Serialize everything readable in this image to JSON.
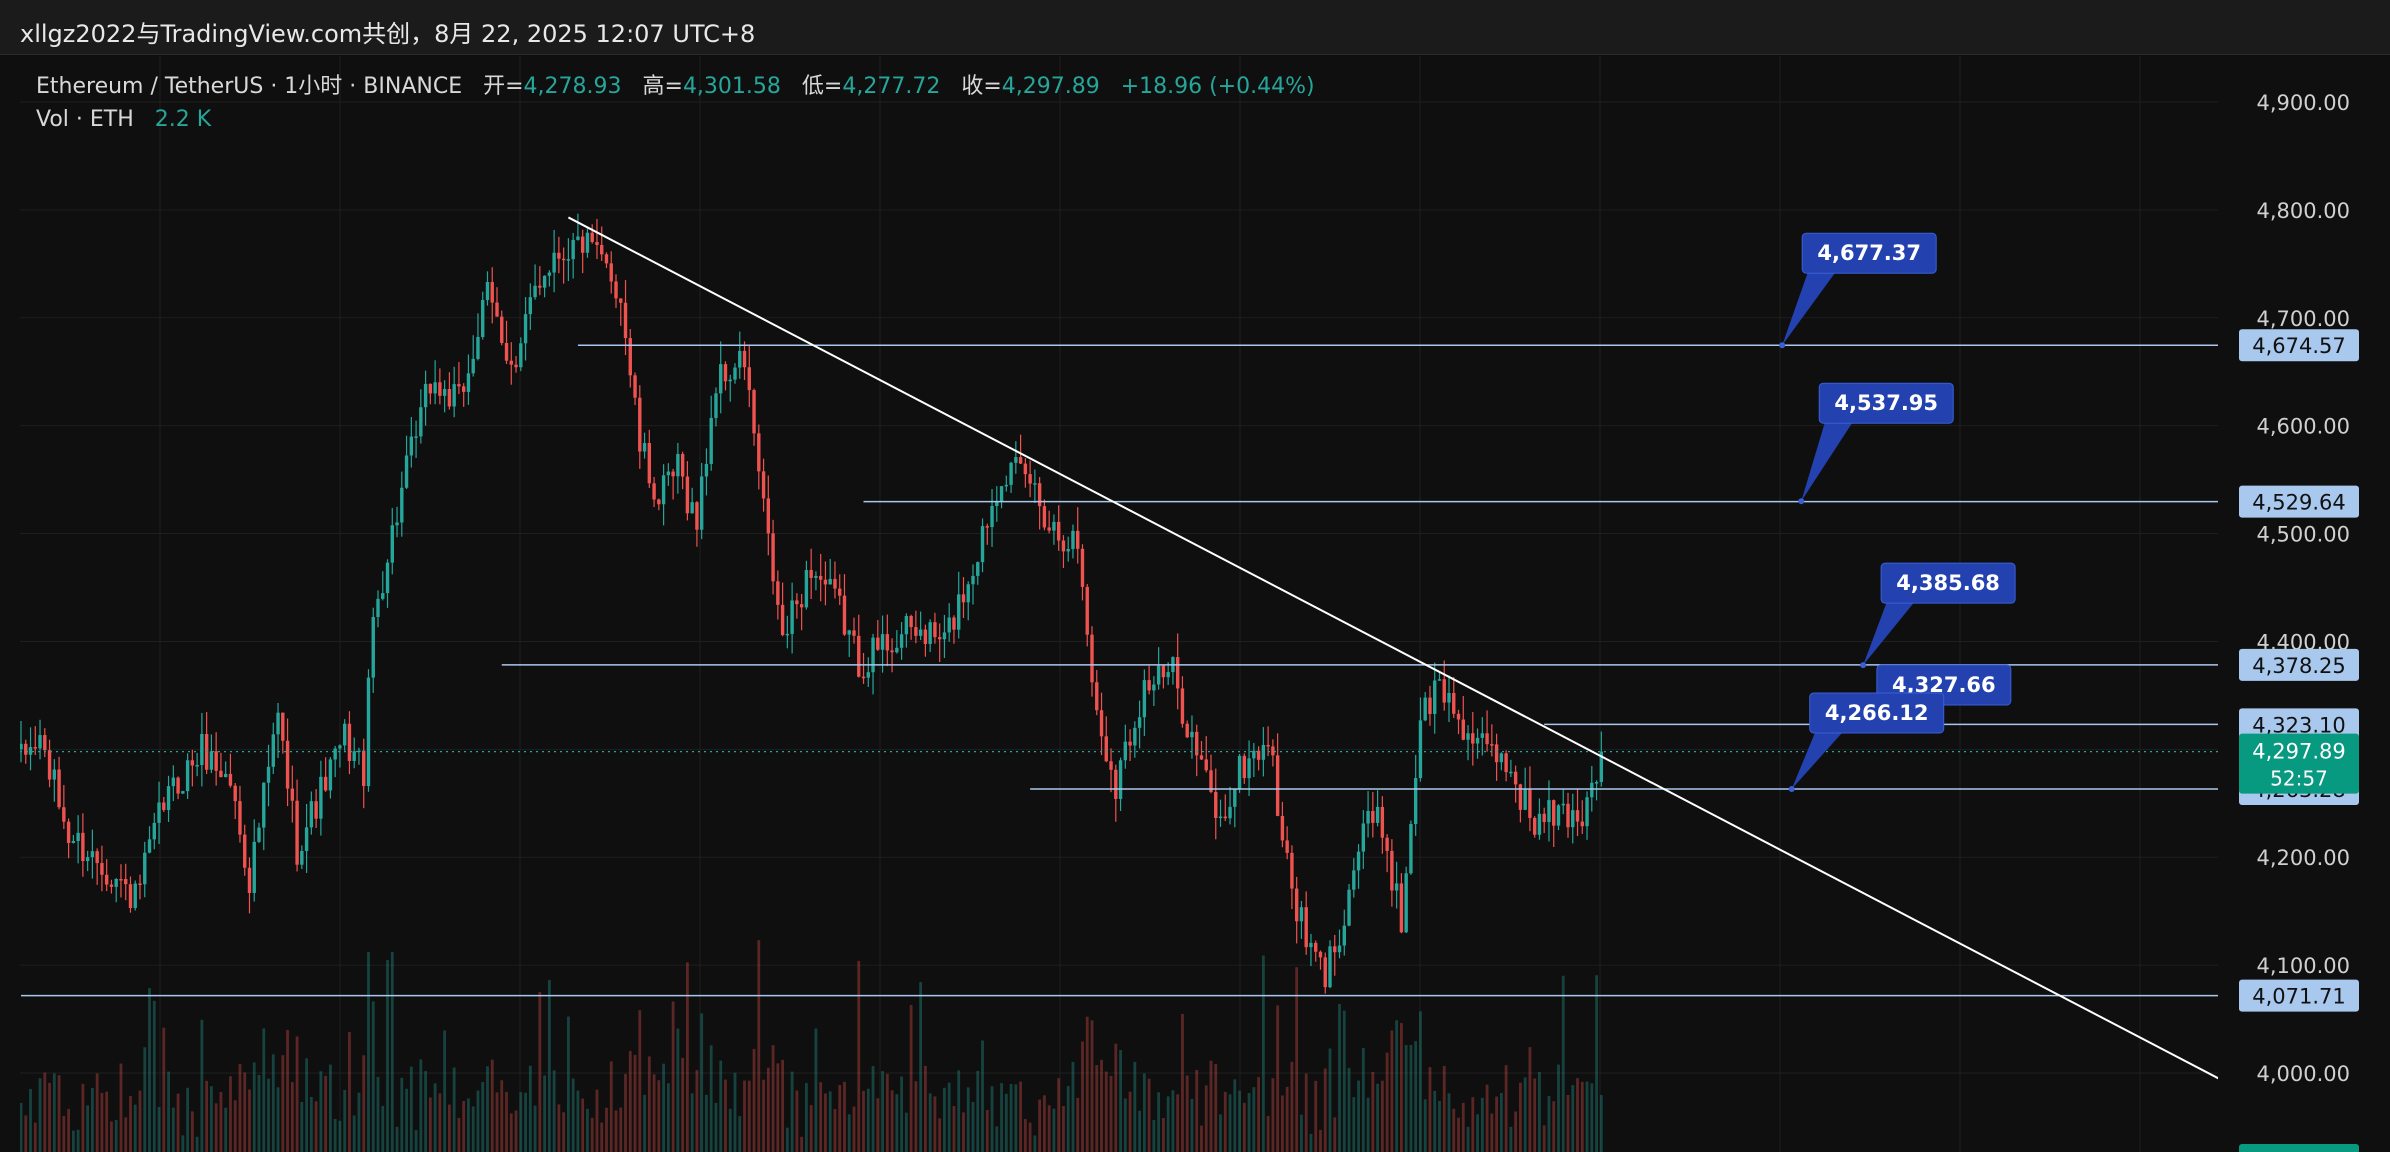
{
  "header": {
    "caption": "xllgz2022与TradingView.com共创，8月 22, 2025 12:07 UTC+8"
  },
  "legend": {
    "symbol": "Ethereum / TetherUS · 1小时 · BINANCE",
    "open_label": "开=",
    "open": "4,278.93",
    "high_label": "高=",
    "high": "4,301.58",
    "low_label": "低=",
    "low": "4,277.72",
    "close_label": "收=",
    "close": "4,297.89",
    "change": "+18.96 (+0.44%)",
    "vol_label": "Vol · ETH",
    "vol": "2.2 K"
  },
  "colors": {
    "background": "#0f0f0f",
    "up": "#26a69a",
    "down": "#ef5350",
    "hline": "#a9c8ee",
    "trendline": "#ffffff",
    "callout": "#2342b0",
    "price_tag": "#a9c8ee",
    "current_tag": "#089981"
  },
  "chart_data": {
    "type": "candlestick",
    "y_axis": {
      "min": 3985,
      "max": 4935,
      "ticks": [
        "4,900.00",
        "4,800.00",
        "4,700.00",
        "4,600.00",
        "4,500.00",
        "4,400.00",
        "4,300.00",
        "4,200.00",
        "4,100.00",
        "4,000.00"
      ]
    },
    "grid": true,
    "current_price": {
      "value": 4297.89,
      "label": "4,297.89",
      "countdown": "52:57"
    },
    "horizontal_levels": [
      {
        "value": 4674.57,
        "label": "4,674.57",
        "from_bar": 117
      },
      {
        "value": 4529.64,
        "label": "4,529.64",
        "from_bar": 177
      },
      {
        "value": 4378.25,
        "label": "4,378.25",
        "from_bar": 101
      },
      {
        "value": 4323.1,
        "label": "4,323.10",
        "from_bar": 320
      },
      {
        "value": 4263.28,
        "label": "4,263.28",
        "from_bar": 212
      },
      {
        "value": 4071.71,
        "label": "4,071.71",
        "from_bar": 0
      }
    ],
    "trendline": {
      "start": {
        "bar": 115,
        "value": 4793
      },
      "end": {
        "bar": 466,
        "value": 3985
      }
    },
    "callouts": [
      {
        "label": "4,677.37",
        "anchor_bar": 370,
        "anchor_value": 4674.57
      },
      {
        "label": "4,537.95",
        "anchor_bar": 374,
        "anchor_value": 4530
      },
      {
        "label": "4,385.68",
        "anchor_bar": 387,
        "anchor_value": 4378
      },
      {
        "label": "4,327.66",
        "anchor_bar": 384,
        "anchor_value": 4330
      },
      {
        "label": "4,266.12",
        "anchor_bar": 372,
        "anchor_value": 4263.28
      }
    ],
    "ohlc_anchors": [
      [
        0,
        4290
      ],
      [
        4,
        4310
      ],
      [
        10,
        4220
      ],
      [
        18,
        4190
      ],
      [
        24,
        4160
      ],
      [
        30,
        4250
      ],
      [
        38,
        4300
      ],
      [
        44,
        4270
      ],
      [
        48,
        4180
      ],
      [
        54,
        4330
      ],
      [
        58,
        4210
      ],
      [
        62,
        4250
      ],
      [
        68,
        4310
      ],
      [
        72,
        4280
      ],
      [
        74,
        4420
      ],
      [
        80,
        4540
      ],
      [
        86,
        4640
      ],
      [
        92,
        4620
      ],
      [
        98,
        4720
      ],
      [
        104,
        4650
      ],
      [
        108,
        4730
      ],
      [
        112,
        4760
      ],
      [
        118,
        4770
      ],
      [
        124,
        4740
      ],
      [
        126,
        4720
      ],
      [
        130,
        4580
      ],
      [
        134,
        4530
      ],
      [
        138,
        4560
      ],
      [
        142,
        4510
      ],
      [
        146,
        4640
      ],
      [
        152,
        4660
      ],
      [
        156,
        4520
      ],
      [
        160,
        4400
      ],
      [
        166,
        4470
      ],
      [
        172,
        4430
      ],
      [
        176,
        4380
      ],
      [
        182,
        4400
      ],
      [
        188,
        4410
      ],
      [
        194,
        4400
      ],
      [
        200,
        4470
      ],
      [
        206,
        4560
      ],
      [
        212,
        4550
      ],
      [
        216,
        4510
      ],
      [
        222,
        4490
      ],
      [
        226,
        4330
      ],
      [
        230,
        4270
      ],
      [
        236,
        4360
      ],
      [
        242,
        4370
      ],
      [
        246,
        4310
      ],
      [
        252,
        4230
      ],
      [
        256,
        4280
      ],
      [
        262,
        4310
      ],
      [
        266,
        4190
      ],
      [
        270,
        4120
      ],
      [
        274,
        4090
      ],
      [
        278,
        4150
      ],
      [
        282,
        4230
      ],
      [
        286,
        4230
      ],
      [
        290,
        4140
      ],
      [
        294,
        4330
      ],
      [
        298,
        4360
      ],
      [
        302,
        4330
      ],
      [
        306,
        4300
      ],
      [
        312,
        4290
      ],
      [
        318,
        4230
      ],
      [
        322,
        4240
      ],
      [
        328,
        4240
      ],
      [
        332,
        4298
      ]
    ],
    "volume_bars": 333
  }
}
